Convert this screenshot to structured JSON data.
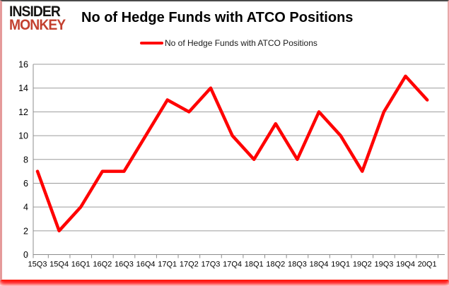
{
  "header": {
    "logo_line1": "INSIDER",
    "logo_line2": "MONKEY",
    "title": "No of Hedge Funds with ATCO Positions"
  },
  "legend": {
    "label": "No of Hedge Funds with ATCO Positions"
  },
  "colors": {
    "line": "#ff0000",
    "logo_black": "#161412",
    "logo_red": "#c3402f",
    "grid": "#9b9b9b",
    "axis": "#8c8c8c",
    "axis_text": "#000000",
    "border_pink": "#e59a9a",
    "border_top": "#4a4a4a",
    "shadow_red": "#ff0000"
  },
  "chart_data": {
    "type": "line",
    "title": "No of Hedge Funds with ATCO Positions",
    "series_name": "No of Hedge Funds with ATCO Positions",
    "categories": [
      "15Q3",
      "15Q4",
      "16Q1",
      "16Q2",
      "16Q3",
      "16Q4",
      "17Q1",
      "17Q2",
      "17Q3",
      "17Q4",
      "18Q1",
      "18Q2",
      "18Q3",
      "18Q4",
      "19Q1",
      "19Q2",
      "19Q3",
      "19Q4",
      "20Q1"
    ],
    "values": [
      7,
      2,
      4,
      7,
      7,
      10,
      13,
      12,
      14,
      10,
      8,
      11,
      8,
      12,
      10,
      7,
      12,
      15,
      13
    ],
    "xlabel": "",
    "ylabel": "",
    "ylim": [
      0,
      16
    ],
    "yticks": [
      0,
      2,
      4,
      6,
      8,
      10,
      12,
      14,
      16
    ],
    "grid": true,
    "legend_position": "top"
  }
}
